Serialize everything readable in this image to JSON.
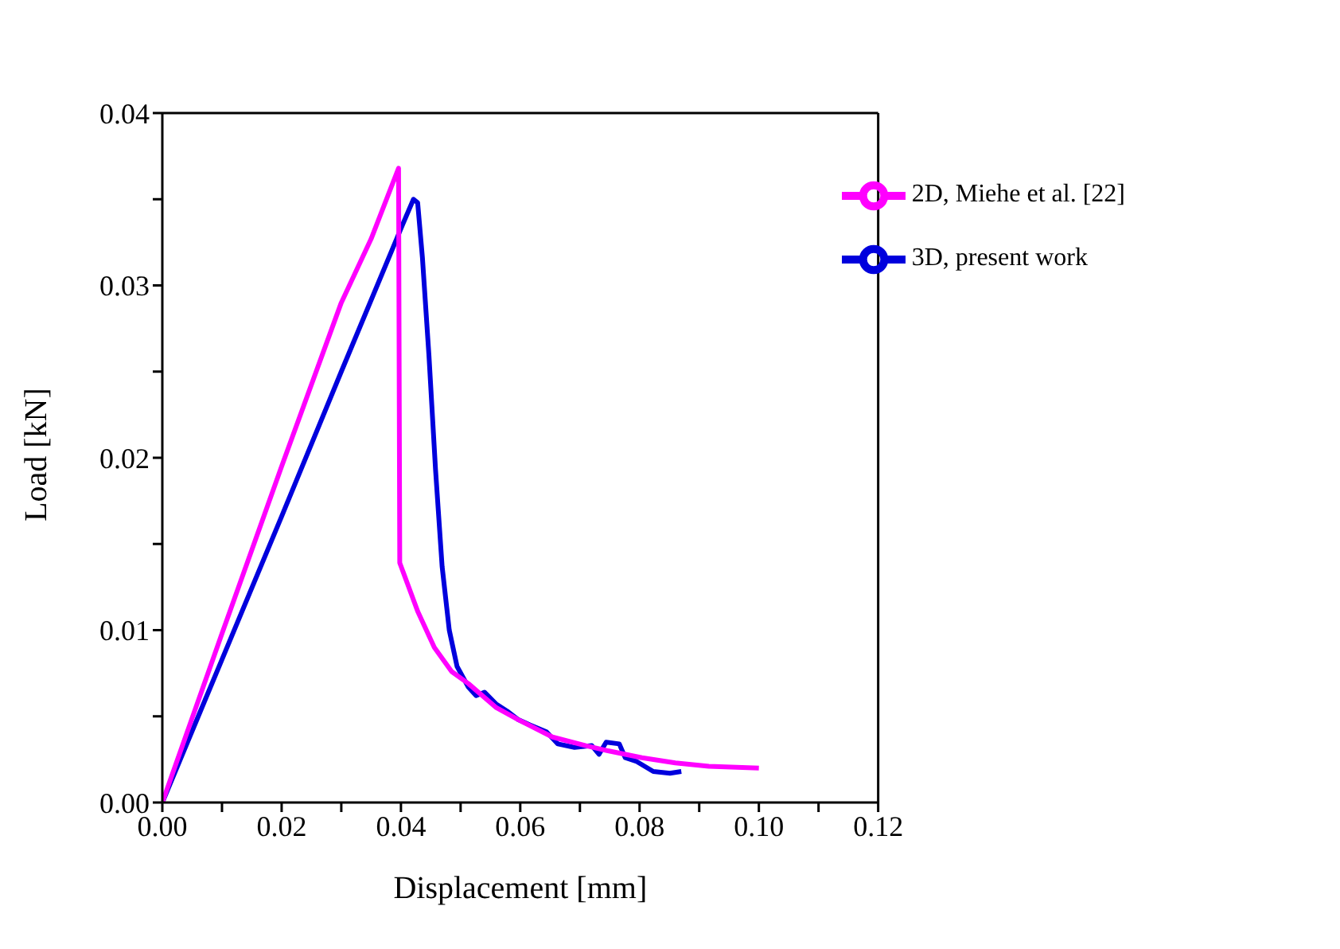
{
  "chart_data": {
    "type": "line",
    "xlabel": "Displacement [mm]",
    "ylabel": "Load [kN]",
    "xlim": [
      0,
      0.12
    ],
    "ylim": [
      0,
      0.04
    ],
    "xticks": [
      {
        "value": 0,
        "label": "0.00"
      },
      {
        "value": 0.01,
        "label": null
      },
      {
        "value": 0.02,
        "label": "0.02"
      },
      {
        "value": 0.03,
        "label": null
      },
      {
        "value": 0.04,
        "label": "0.04"
      },
      {
        "value": 0.05,
        "label": null
      },
      {
        "value": 0.06,
        "label": "0.06"
      },
      {
        "value": 0.07,
        "label": null
      },
      {
        "value": 0.08,
        "label": "0.08"
      },
      {
        "value": 0.09,
        "label": null
      },
      {
        "value": 0.1,
        "label": "0.10"
      },
      {
        "value": 0.11,
        "label": null
      },
      {
        "value": 0.12,
        "label": "0.12"
      }
    ],
    "yticks": [
      {
        "value": 0,
        "label": "0.00"
      },
      {
        "value": 0.005,
        "label": null
      },
      {
        "value": 0.01,
        "label": "0.01"
      },
      {
        "value": 0.015,
        "label": null
      },
      {
        "value": 0.02,
        "label": "0.02"
      },
      {
        "value": 0.025,
        "label": null
      },
      {
        "value": 0.03,
        "label": "0.03"
      },
      {
        "value": 0.035,
        "label": null
      },
      {
        "value": 0.04,
        "label": "0.04"
      }
    ],
    "grid": false,
    "legend": "top right",
    "marker": "none",
    "line_style": "solid",
    "series": [
      {
        "name": "3D, present work",
        "color": "#0000dd",
        "x": [
          0,
          0.01,
          0.02,
          0.03,
          0.04,
          0.0421,
          0.0428,
          0.0436,
          0.0447,
          0.0458,
          0.0469,
          0.0481,
          0.0494,
          0.0513,
          0.0526,
          0.054,
          0.056,
          0.0578,
          0.0597,
          0.0616,
          0.0644,
          0.0663,
          0.0691,
          0.072,
          0.0732,
          0.0744,
          0.0766,
          0.0776,
          0.0794,
          0.0823,
          0.0851,
          0.087
        ],
        "values": [
          0,
          0.0083,
          0.0166,
          0.025,
          0.0333,
          0.035,
          0.0348,
          0.0316,
          0.0259,
          0.0193,
          0.0137,
          0.01,
          0.0079,
          0.0067,
          0.0062,
          0.0064,
          0.0057,
          0.0053,
          0.0048,
          0.0045,
          0.0041,
          0.0034,
          0.0032,
          0.0033,
          0.0028,
          0.0035,
          0.0034,
          0.0026,
          0.0024,
          0.0018,
          0.0017,
          0.0018
        ]
      },
      {
        "name": "2D, Miehe et al. [22]",
        "color": "#ff00ff",
        "x": [
          0,
          0.01,
          0.02,
          0.03,
          0.035,
          0.0396,
          0.0398,
          0.0428,
          0.0456,
          0.0485,
          0.0513,
          0.056,
          0.0597,
          0.0654,
          0.071,
          0.0747,
          0.0804,
          0.086,
          0.0916,
          0.1
        ],
        "values": [
          0,
          0.0098,
          0.0195,
          0.029,
          0.0327,
          0.0368,
          0.0139,
          0.0111,
          0.009,
          0.0076,
          0.0069,
          0.0055,
          0.0048,
          0.0038,
          0.0033,
          0.003,
          0.0026,
          0.0023,
          0.0021,
          0.002
        ]
      }
    ]
  }
}
